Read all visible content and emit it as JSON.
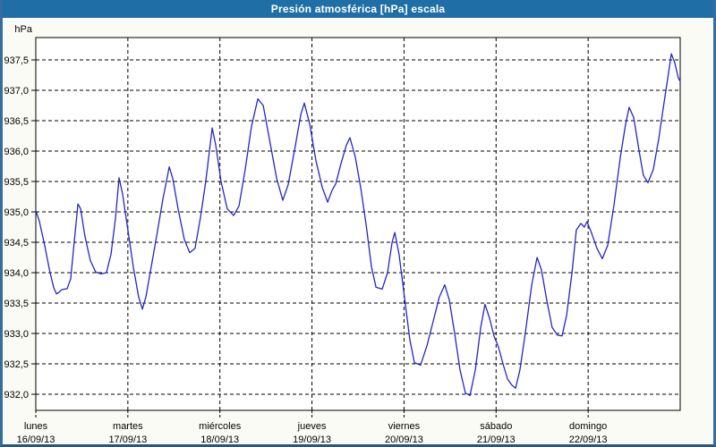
{
  "title": "Presión atmosférica [hPa] escala",
  "unit_label": "hPa",
  "colors": {
    "title_bg": "#1f6fa6",
    "title_text": "#ffffff",
    "frame": "#336e9e",
    "page_bg": "#fbfbf6",
    "plot_bg": "#ffffff",
    "grid": "#000000",
    "axis": "#000000",
    "line": "#2525c9"
  },
  "chart_data": {
    "type": "line",
    "title": "Presión atmosférica [hPa] escala",
    "ylabel": "hPa",
    "xlabel": "",
    "grid": "dashed",
    "legend": "none",
    "ylim": [
      932.0,
      937.5
    ],
    "y_step": 0.5,
    "y_tick_labels": [
      "937,5",
      "937,0",
      "936,5",
      "936,0",
      "935,5",
      "935,0",
      "934,5",
      "934,0",
      "933,5",
      "933,0",
      "932,5",
      "932,0"
    ],
    "x_hours_total": 168,
    "x_days": [
      {
        "name": "lunes",
        "date": "16/09/13"
      },
      {
        "name": "martes",
        "date": "17/09/13"
      },
      {
        "name": "miércoles",
        "date": "18/09/13"
      },
      {
        "name": "jueves",
        "date": "19/09/13"
      },
      {
        "name": "viernes",
        "date": "20/09/13"
      },
      {
        "name": "sábado",
        "date": "21/09/13"
      },
      {
        "name": "domingo",
        "date": "22/09/13"
      }
    ],
    "series": [
      {
        "name": "presión atmosférica",
        "points_hour_hpa": [
          [
            0.0,
            935.02
          ],
          [
            0.9,
            934.85
          ],
          [
            2.3,
            934.45
          ],
          [
            3.7,
            934.0
          ],
          [
            4.7,
            933.75
          ],
          [
            5.4,
            933.65
          ],
          [
            6.1,
            933.68
          ],
          [
            6.8,
            933.72
          ],
          [
            8.2,
            933.74
          ],
          [
            9.1,
            933.9
          ],
          [
            10.0,
            934.5
          ],
          [
            11.0,
            935.13
          ],
          [
            11.7,
            935.05
          ],
          [
            12.8,
            934.6
          ],
          [
            14.2,
            934.2
          ],
          [
            15.6,
            934.01
          ],
          [
            17.0,
            933.98
          ],
          [
            18.4,
            934.0
          ],
          [
            19.6,
            934.3
          ],
          [
            20.8,
            934.9
          ],
          [
            21.7,
            935.56
          ],
          [
            22.6,
            935.3
          ],
          [
            24.0,
            934.7
          ],
          [
            25.4,
            934.1
          ],
          [
            26.8,
            933.6
          ],
          [
            27.8,
            933.4
          ],
          [
            28.7,
            933.6
          ],
          [
            30.1,
            934.1
          ],
          [
            31.5,
            934.6
          ],
          [
            33.1,
            935.2
          ],
          [
            34.8,
            935.74
          ],
          [
            35.7,
            935.55
          ],
          [
            37.1,
            935.05
          ],
          [
            38.7,
            934.55
          ],
          [
            40.1,
            934.33
          ],
          [
            41.5,
            934.4
          ],
          [
            42.9,
            934.9
          ],
          [
            44.3,
            935.5
          ],
          [
            46.0,
            936.38
          ],
          [
            46.9,
            936.1
          ],
          [
            48.3,
            935.5
          ],
          [
            49.9,
            935.05
          ],
          [
            51.6,
            934.94
          ],
          [
            53.0,
            935.1
          ],
          [
            54.6,
            935.7
          ],
          [
            56.2,
            936.4
          ],
          [
            57.9,
            936.86
          ],
          [
            59.3,
            936.75
          ],
          [
            60.9,
            936.2
          ],
          [
            62.8,
            935.55
          ],
          [
            64.4,
            935.19
          ],
          [
            65.8,
            935.45
          ],
          [
            67.4,
            936.0
          ],
          [
            69.1,
            936.6
          ],
          [
            70.0,
            936.79
          ],
          [
            71.4,
            936.45
          ],
          [
            73.0,
            935.85
          ],
          [
            74.7,
            935.4
          ],
          [
            76.1,
            935.16
          ],
          [
            77.2,
            935.35
          ],
          [
            78.2,
            935.46
          ],
          [
            79.6,
            935.8
          ],
          [
            81.0,
            936.1
          ],
          [
            81.9,
            936.22
          ],
          [
            83.3,
            935.9
          ],
          [
            84.7,
            935.4
          ],
          [
            86.1,
            934.8
          ],
          [
            87.5,
            934.1
          ],
          [
            88.7,
            933.76
          ],
          [
            90.3,
            933.73
          ],
          [
            91.7,
            934.0
          ],
          [
            92.9,
            934.5
          ],
          [
            93.6,
            934.66
          ],
          [
            94.7,
            934.3
          ],
          [
            96.1,
            933.6
          ],
          [
            97.5,
            932.9
          ],
          [
            98.7,
            932.52
          ],
          [
            100.3,
            932.48
          ],
          [
            102.0,
            932.8
          ],
          [
            103.6,
            933.2
          ],
          [
            105.2,
            933.6
          ],
          [
            106.6,
            933.8
          ],
          [
            107.8,
            933.55
          ],
          [
            109.2,
            933.0
          ],
          [
            110.6,
            932.4
          ],
          [
            112.0,
            932.02
          ],
          [
            113.2,
            931.98
          ],
          [
            114.6,
            932.4
          ],
          [
            116.0,
            933.1
          ],
          [
            117.1,
            933.48
          ],
          [
            118.3,
            933.25
          ],
          [
            119.5,
            932.95
          ],
          [
            120.6,
            932.78
          ],
          [
            121.8,
            932.5
          ],
          [
            123.0,
            932.25
          ],
          [
            124.1,
            932.15
          ],
          [
            125.1,
            932.1
          ],
          [
            126.2,
            932.4
          ],
          [
            127.6,
            933.0
          ],
          [
            129.3,
            933.8
          ],
          [
            130.7,
            934.25
          ],
          [
            131.8,
            934.05
          ],
          [
            133.2,
            933.55
          ],
          [
            134.6,
            933.1
          ],
          [
            136.0,
            932.97
          ],
          [
            137.2,
            932.96
          ],
          [
            138.4,
            933.3
          ],
          [
            139.8,
            934.0
          ],
          [
            140.9,
            934.7
          ],
          [
            142.1,
            934.81
          ],
          [
            143.0,
            934.75
          ],
          [
            143.7,
            934.84
          ],
          [
            144.9,
            934.65
          ],
          [
            146.3,
            934.4
          ],
          [
            147.7,
            934.23
          ],
          [
            149.1,
            934.45
          ],
          [
            150.7,
            935.1
          ],
          [
            152.4,
            935.9
          ],
          [
            153.8,
            936.45
          ],
          [
            154.7,
            936.72
          ],
          [
            155.9,
            936.55
          ],
          [
            157.3,
            936.0
          ],
          [
            158.4,
            935.6
          ],
          [
            159.6,
            935.48
          ],
          [
            161.0,
            935.7
          ],
          [
            162.4,
            936.2
          ],
          [
            163.8,
            936.8
          ],
          [
            165.0,
            937.3
          ],
          [
            165.7,
            937.6
          ],
          [
            166.6,
            937.45
          ],
          [
            167.5,
            937.2
          ],
          [
            168.0,
            937.15
          ]
        ]
      }
    ]
  }
}
